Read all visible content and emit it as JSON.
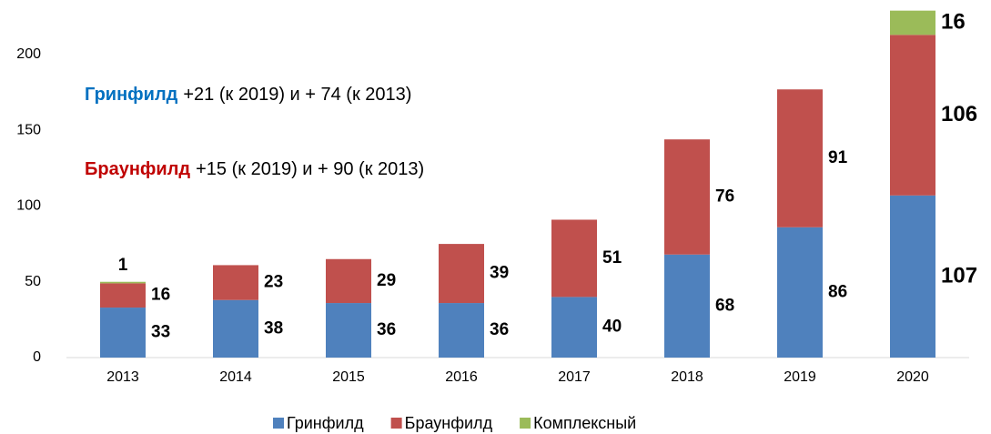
{
  "chart_data": {
    "type": "stacked_bar",
    "categories": [
      "2013",
      "2014",
      "2015",
      "2016",
      "2017",
      "2018",
      "2019",
      "2020"
    ],
    "series": [
      {
        "name": "Гринфилд",
        "color": "#4f81bd",
        "label_color": "#4f81bd",
        "values": [
          33,
          38,
          36,
          36,
          40,
          68,
          86,
          107
        ]
      },
      {
        "name": "Браунфилд",
        "color": "#c0504d",
        "label_color": "#c00000",
        "values": [
          16,
          23,
          29,
          39,
          51,
          76,
          91,
          106
        ]
      },
      {
        "name": "Комплексный",
        "color": "#9bbb59",
        "label_color": "#9bbb59",
        "values": [
          1,
          null,
          null,
          null,
          null,
          null,
          null,
          16
        ]
      }
    ],
    "ylim": [
      0,
      230
    ],
    "yticks": [
      0,
      50,
      100,
      150,
      200
    ],
    "grid": false,
    "legend": "bottom",
    "annotations": [
      {
        "highlight": "Гринфилд",
        "color": "#0070c0",
        "text": "+21 (к 2019) и + 74 (к 2013)"
      },
      {
        "highlight": "Браунфилд",
        "color": "#c00000",
        "text": "+15 (к 2019) и + 90 (к 2013)"
      }
    ]
  }
}
